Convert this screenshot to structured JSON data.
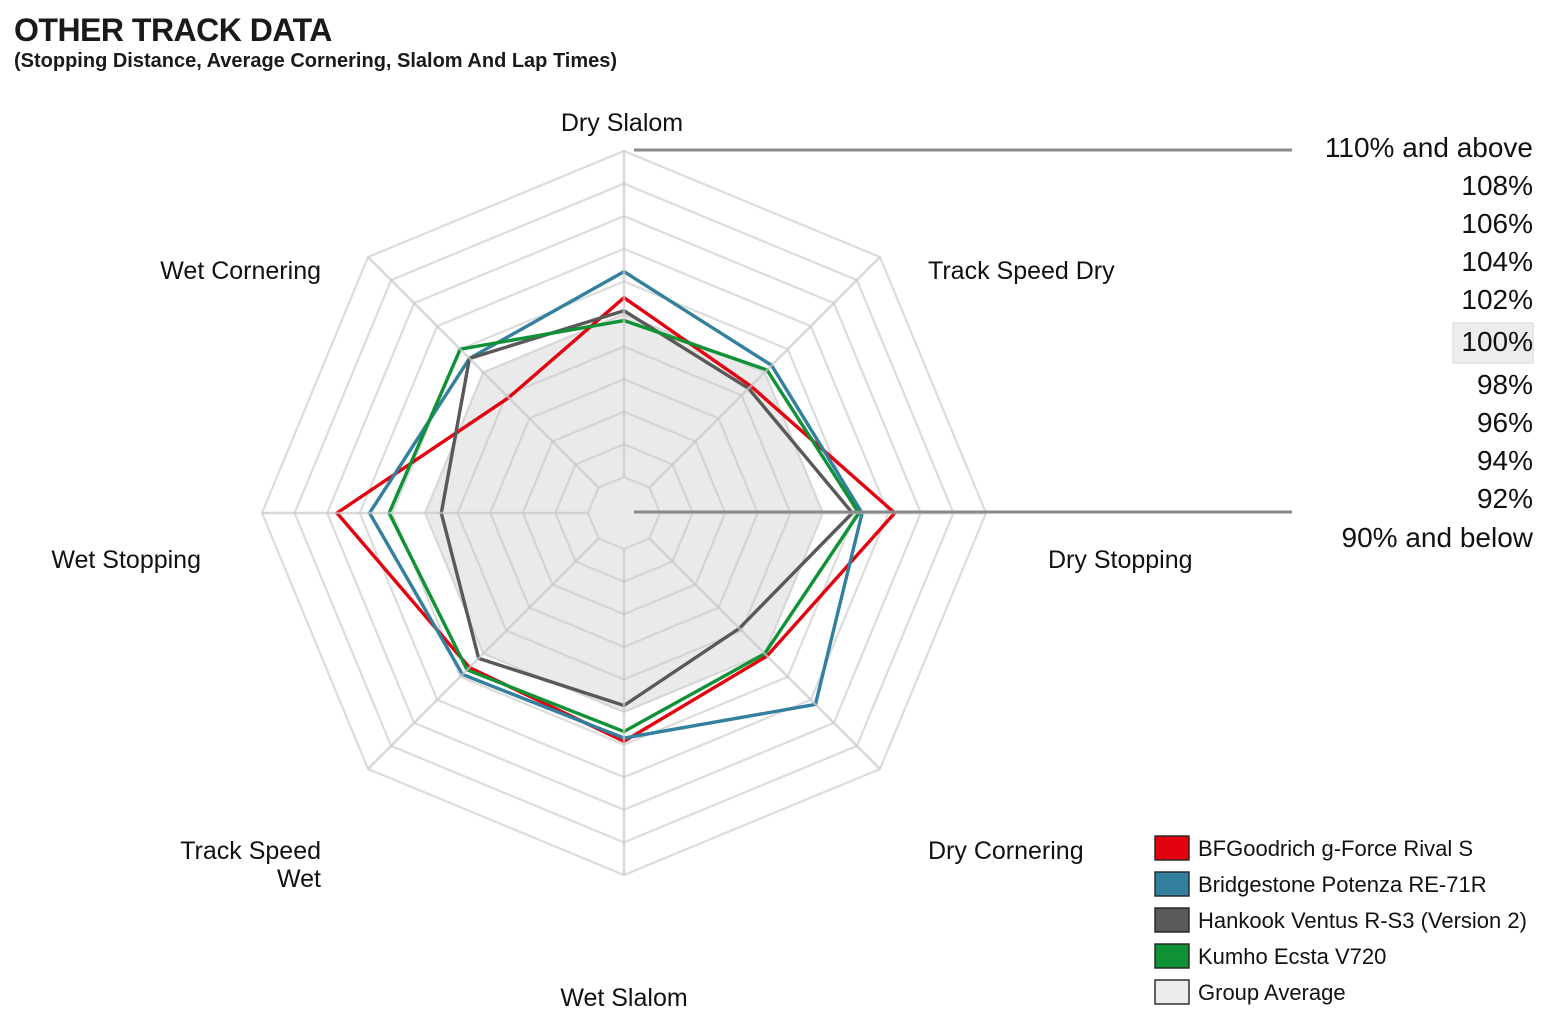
{
  "header": {
    "title": "OTHER TRACK DATA",
    "subtitle": "(Stopping Distance, Average Cornering, Slalom And Lap Times)"
  },
  "chart_data": {
    "type": "radar",
    "axes": [
      "Dry Slalom",
      "Track Speed Dry",
      "Dry Stopping",
      "Dry Cornering",
      "Wet Slalom",
      "Track Speed Wet",
      "Wet Stopping",
      "Wet Cornering"
    ],
    "scale": {
      "min": 90,
      "max": 110,
      "step": 2,
      "unit": "%",
      "labels": [
        "110% and above",
        "108%",
        "106%",
        "104%",
        "102%",
        "100%",
        "98%",
        "96%",
        "94%",
        "92%",
        "90% and below"
      ],
      "highlight": "100%"
    },
    "series": [
      {
        "name": "BFGoodrich g-Force Rival S",
        "color": "#e3000f",
        "values": [
          101.0,
          98.8,
          104.4,
          100.2,
          101.8,
          101.2,
          105.4,
          97.8
        ]
      },
      {
        "name": "Bridgestone Potenza RE-71R",
        "color": "#337f9e",
        "values": [
          102.6,
          100.6,
          102.4,
          104.4,
          101.6,
          101.8,
          103.4,
          101.2
        ]
      },
      {
        "name": "Hankook Ventus R-S3 (Version 2)",
        "color": "#5b5958",
        "values": [
          100.2,
          98.6,
          101.8,
          97.8,
          99.6,
          100.4,
          99.0,
          101.2
        ]
      },
      {
        "name": "Kumho Ecsta V720",
        "color": "#0f9136",
        "values": [
          99.6,
          100.2,
          102.2,
          100.0,
          101.2,
          101.4,
          102.2,
          102.0
        ]
      },
      {
        "name": "Group Average",
        "color": "#ececec",
        "values": [
          100,
          100,
          100,
          100,
          100,
          100,
          100,
          100
        ]
      }
    ],
    "axis_label_lines": [
      [
        "Dry Slalom"
      ],
      [
        "Track Speed Dry"
      ],
      [
        "Dry Stopping"
      ],
      [
        "Dry Cornering"
      ],
      [
        "Wet Slalom"
      ],
      [
        "Track Speed",
        "Wet"
      ],
      [
        "Wet Stopping"
      ],
      [
        "Wet Cornering"
      ]
    ],
    "legend_position": "bottom-right"
  }
}
